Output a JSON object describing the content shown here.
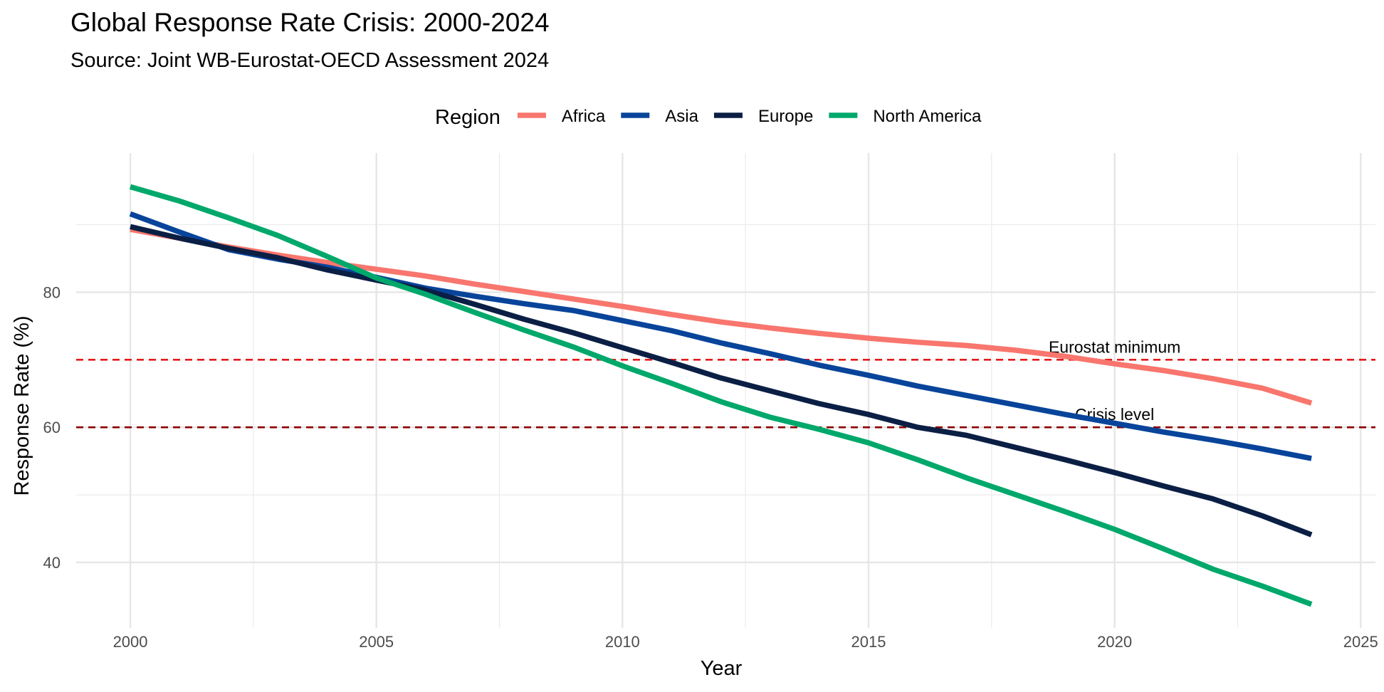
{
  "chart_data": {
    "type": "line",
    "title": "Global Response Rate Crisis: 2000-2024",
    "subtitle": "Source: Joint WB-Eurostat-OECD Assessment 2024",
    "xlabel": "Year",
    "ylabel": "Response Rate (%)",
    "xlim": [
      1998.9,
      2025.3
    ],
    "ylim": [
      30.3,
      100.6
    ],
    "x_ticks": [
      2000,
      2005,
      2010,
      2015,
      2020,
      2025
    ],
    "y_ticks": [
      40,
      60,
      80
    ],
    "legend": {
      "title": "Region",
      "position": "top"
    },
    "x": [
      2000,
      2001,
      2002,
      2003,
      2004,
      2005,
      2006,
      2007,
      2008,
      2009,
      2010,
      2011,
      2012,
      2013,
      2014,
      2015,
      2016,
      2017,
      2018,
      2019,
      2020,
      2021,
      2022,
      2023,
      2024
    ],
    "series": [
      {
        "name": "Africa",
        "color": "#f8766d",
        "values": [
          89.3,
          88.0,
          86.7,
          85.5,
          84.4,
          83.4,
          82.4,
          81.2,
          80.1,
          79.0,
          77.9,
          76.7,
          75.6,
          74.7,
          73.9,
          73.2,
          72.6,
          72.1,
          71.4,
          70.5,
          69.4,
          68.4,
          67.2,
          65.8,
          63.6
        ]
      },
      {
        "name": "Asia",
        "color": "#08449a",
        "values": [
          91.6,
          88.9,
          86.3,
          84.9,
          83.7,
          82.2,
          80.6,
          79.4,
          78.3,
          77.3,
          75.8,
          74.3,
          72.5,
          70.9,
          69.2,
          67.7,
          66.1,
          64.7,
          63.3,
          61.9,
          60.6,
          59.3,
          58.1,
          56.8,
          55.4
        ]
      },
      {
        "name": "Europe",
        "color": "#0b1f45",
        "values": [
          89.7,
          88.0,
          86.5,
          85.1,
          83.3,
          81.8,
          80.3,
          78.2,
          76.0,
          74.0,
          71.8,
          69.6,
          67.3,
          65.4,
          63.5,
          61.9,
          60.0,
          58.8,
          57.0,
          55.2,
          53.3,
          51.3,
          49.4,
          46.9,
          44.1
        ]
      },
      {
        "name": "North America",
        "color": "#00a86b",
        "values": [
          95.6,
          93.5,
          91.0,
          88.4,
          85.3,
          82.1,
          79.7,
          77.0,
          74.4,
          71.9,
          69.1,
          66.5,
          63.8,
          61.5,
          59.7,
          57.7,
          55.2,
          52.5,
          50.0,
          47.5,
          44.9,
          42.0,
          39.0,
          36.5,
          33.8
        ]
      }
    ],
    "reference_lines": [
      {
        "label": "Eurostat minimum",
        "y": 70,
        "color": "#e41a1c",
        "label_x": 2020
      },
      {
        "label": "Crisis level",
        "y": 60,
        "color": "#8b0000",
        "label_x": 2020
      }
    ]
  }
}
